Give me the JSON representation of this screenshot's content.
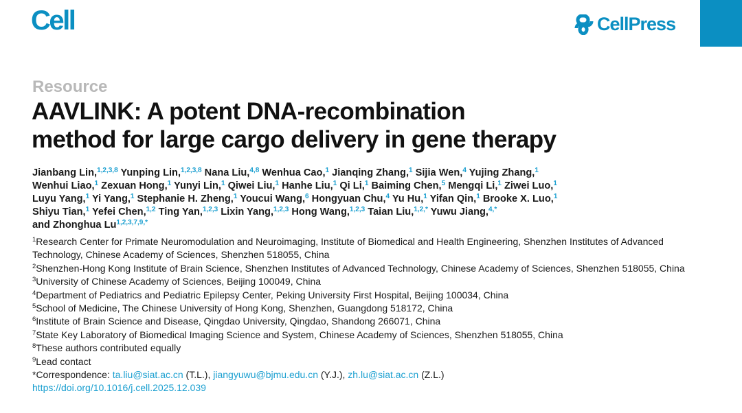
{
  "header": {
    "journal": "Cell",
    "publisher": "CellPress",
    "brand_color": "#0b8fc2",
    "logo_icon": "cellpress-link-icon"
  },
  "article_type": "Resource",
  "title_lines": [
    "AAVLINK: A potent DNA-recombination",
    "method for large cargo delivery in gene therapy"
  ],
  "author_lines": [
    [
      {
        "name": "Jianbang Lin,",
        "sup": "1,2,3,8"
      },
      {
        "name": "Yunping Lin,",
        "sup": "1,2,3,8"
      },
      {
        "name": "Nana Liu,",
        "sup": "4,8"
      },
      {
        "name": "Wenhua Cao,",
        "sup": "1"
      },
      {
        "name": "Jianqing Zhang,",
        "sup": "1"
      },
      {
        "name": "Sijia Wen,",
        "sup": "4"
      },
      {
        "name": "Yujing Zhang,",
        "sup": "1"
      }
    ],
    [
      {
        "name": "Wenhui Liao,",
        "sup": "1"
      },
      {
        "name": "Zexuan Hong,",
        "sup": "1"
      },
      {
        "name": "Yunyi Lin,",
        "sup": "1"
      },
      {
        "name": "Qiwei Liu,",
        "sup": "1"
      },
      {
        "name": "Hanhe Liu,",
        "sup": "1"
      },
      {
        "name": "Qi Li,",
        "sup": "1"
      },
      {
        "name": "Baiming Chen,",
        "sup": "5"
      },
      {
        "name": "Mengqi Li,",
        "sup": "1"
      },
      {
        "name": "Ziwei Luo,",
        "sup": "1"
      }
    ],
    [
      {
        "name": "Luyu Yang,",
        "sup": "1"
      },
      {
        "name": "Yi Yang,",
        "sup": "1"
      },
      {
        "name": "Stephanie H. Zheng,",
        "sup": "1"
      },
      {
        "name": "Youcui Wang,",
        "sup": "6"
      },
      {
        "name": "Hongyuan Chu,",
        "sup": "4"
      },
      {
        "name": "Yu Hu,",
        "sup": "1"
      },
      {
        "name": "Yifan Qin,",
        "sup": "1"
      },
      {
        "name": "Brooke X. Luo,",
        "sup": "1"
      }
    ],
    [
      {
        "name": "Shiyu Tian,",
        "sup": "1"
      },
      {
        "name": "Yefei Chen,",
        "sup": "1,2"
      },
      {
        "name": "Ting Yan,",
        "sup": "1,2,3"
      },
      {
        "name": "Lixin Yang,",
        "sup": "1,2,3"
      },
      {
        "name": "Hong Wang,",
        "sup": "1,2,3"
      },
      {
        "name": "Taian Liu,",
        "sup": "1,2,*"
      },
      {
        "name": "Yuwu Jiang,",
        "sup": "4,*"
      }
    ],
    [
      {
        "name": "and Zhonghua Lu",
        "sup": "1,2,3,7,9,*"
      }
    ]
  ],
  "affiliations": [
    {
      "num": "1",
      "text": "Research Center for Primate Neuromodulation and Neuroimaging, Institute of Biomedical and Health Engineering, Shenzhen Institutes of Advanced Technology, Chinese Academy of Sciences, Shenzhen 518055, China"
    },
    {
      "num": "2",
      "text": "Shenzhen-Hong Kong Institute of Brain Science, Shenzhen Institutes of Advanced Technology, Chinese Academy of Sciences, Shenzhen 518055, China"
    },
    {
      "num": "3",
      "text": "University of Chinese Academy of Sciences, Beijing 100049, China"
    },
    {
      "num": "4",
      "text": "Department of Pediatrics and Pediatric Epilepsy Center, Peking University First Hospital, Beijing 100034, China"
    },
    {
      "num": "5",
      "text": "School of Medicine, The Chinese University of Hong Kong, Shenzhen, Guangdong 518172, China"
    },
    {
      "num": "6",
      "text": "Institute of Brain Science and Disease, Qingdao University, Qingdao, Shandong 266071, China"
    },
    {
      "num": "7",
      "text": "State Key Laboratory of Biomedical Imaging Science and System, Chinese Academy of Sciences, Shenzhen 518055, China"
    },
    {
      "num": "8",
      "text": "These authors contributed equally"
    },
    {
      "num": "9",
      "text": "Lead contact"
    }
  ],
  "correspondence": {
    "label": "*Correspondence: ",
    "items": [
      {
        "email": "ta.liu@siat.ac.cn",
        "who": " (T.L.), "
      },
      {
        "email": "jiangyuwu@bjmu.edu.cn",
        "who": " (Y.J.), "
      },
      {
        "email": "zh.lu@siat.ac.cn",
        "who": " (Z.L.)"
      }
    ]
  },
  "doi": "https://doi.org/10.1016/j.cell.2025.12.039"
}
